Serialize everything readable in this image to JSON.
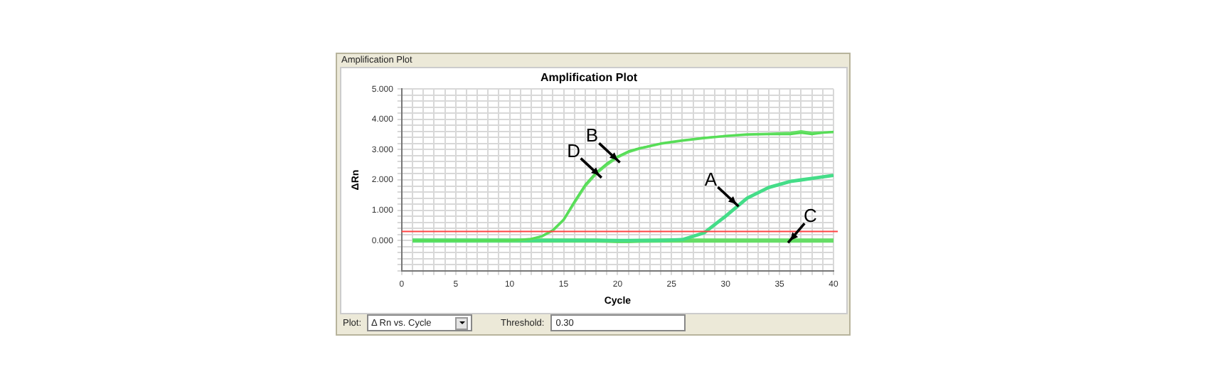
{
  "chart_data": {
    "type": "line",
    "title": "Amplification Plot",
    "xlabel": "Cycle",
    "ylabel": "ΔRn",
    "x": [
      1,
      2,
      4,
      6,
      8,
      10,
      11,
      12,
      13,
      14,
      15,
      16,
      17,
      18,
      19,
      20,
      21,
      22,
      24,
      26,
      28,
      30,
      32,
      34,
      36,
      37,
      38,
      40
    ],
    "series": [
      {
        "color": "#55dd55",
        "values": [
          0,
          0,
          0,
          0,
          0,
          0,
          0.02,
          0.05,
          0.15,
          0.35,
          0.7,
          1.3,
          1.85,
          2.25,
          2.55,
          2.78,
          2.95,
          3.05,
          3.2,
          3.3,
          3.4,
          3.45,
          3.5,
          3.5,
          3.5,
          3.55,
          3.5,
          3.6
        ]
      },
      {
        "color": "#66e066",
        "values": [
          0,
          0,
          0,
          0,
          0,
          0,
          0.02,
          0.05,
          0.14,
          0.33,
          0.68,
          1.25,
          1.8,
          2.2,
          2.5,
          2.75,
          2.92,
          3.03,
          3.2,
          3.3,
          3.38,
          3.45,
          3.5,
          3.52,
          3.55,
          3.6,
          3.55,
          3.58
        ]
      },
      {
        "color": "#44dd88",
        "values": [
          0,
          0,
          0,
          0,
          0,
          0,
          0,
          0,
          0,
          0,
          0,
          0,
          0,
          0,
          0,
          0,
          0,
          0,
          0,
          0.03,
          0.25,
          0.8,
          1.4,
          1.75,
          1.95,
          2.0,
          2.05,
          2.15
        ]
      },
      {
        "color": "#66dd66",
        "values": [
          0,
          0,
          0,
          0,
          0,
          0,
          0,
          0,
          0,
          0,
          0,
          0,
          0,
          0,
          -0.01,
          -0.02,
          -0.02,
          -0.01,
          0,
          0,
          0,
          0,
          0,
          0,
          0,
          0,
          0,
          0
        ]
      }
    ],
    "xlim": [
      0,
      40
    ],
    "xticks": [
      0,
      {
        "value": 1,
        "label": null
      },
      {
        "value": 2,
        "label": null
      },
      {
        "value": 3,
        "label": null
      },
      {
        "value": 4,
        "label": null
      },
      5,
      {
        "value": 6,
        "label": null
      },
      {
        "value": 7,
        "label": null
      },
      {
        "value": 8,
        "label": null
      },
      {
        "value": 9,
        "label": null
      },
      10,
      {
        "value": 11,
        "label": null
      },
      {
        "value": 12,
        "label": null
      },
      {
        "value": 13,
        "label": null
      },
      {
        "value": 14,
        "label": null
      },
      15,
      {
        "value": 16,
        "label": null
      },
      {
        "value": 17,
        "label": null
      },
      {
        "value": 18,
        "label": null
      },
      {
        "value": 19,
        "label": null
      },
      20,
      {
        "value": 21,
        "label": null
      },
      {
        "value": 22,
        "label": null
      },
      {
        "value": 23,
        "label": null
      },
      {
        "value": 24,
        "label": null
      },
      25,
      {
        "value": 26,
        "label": null
      },
      {
        "value": 27,
        "label": null
      },
      {
        "value": 28,
        "label": null
      },
      {
        "value": 29,
        "label": null
      },
      30,
      {
        "value": 31,
        "label": null
      },
      {
        "value": 32,
        "label": null
      },
      {
        "value": 33,
        "label": null
      },
      {
        "value": 34,
        "label": null
      },
      35,
      {
        "value": 36,
        "label": null
      },
      {
        "value": 37,
        "label": null
      },
      {
        "value": 38,
        "label": null
      },
      {
        "value": 39,
        "label": null
      },
      40
    ],
    "ylim": [
      -1,
      5
    ],
    "yticks": [
      {
        "value": -1,
        "label": null
      },
      {
        "value": -0.8,
        "label": null
      },
      {
        "value": -0.6,
        "label": null
      },
      {
        "value": -0.4,
        "label": null
      },
      {
        "value": -0.2,
        "label": null
      },
      {
        "value": 0,
        "label": "0.000"
      },
      {
        "value": 0.2,
        "label": null
      },
      {
        "value": 0.4,
        "label": null
      },
      {
        "value": 0.6,
        "label": null
      },
      {
        "value": 0.8,
        "label": null
      },
      {
        "value": 1,
        "label": "1.000"
      },
      {
        "value": 1.2,
        "label": null
      },
      {
        "value": 1.4,
        "label": null
      },
      {
        "value": 1.6,
        "label": null
      },
      {
        "value": 1.8,
        "label": null
      },
      {
        "value": 2,
        "label": "2.000"
      },
      {
        "value": 2.2,
        "label": null
      },
      {
        "value": 2.4,
        "label": null
      },
      {
        "value": 2.6,
        "label": null
      },
      {
        "value": 2.8,
        "label": null
      },
      {
        "value": 3,
        "label": "3.000"
      },
      {
        "value": 3.2,
        "label": null
      },
      {
        "value": 3.4,
        "label": null
      },
      {
        "value": 3.6,
        "label": null
      },
      {
        "value": 3.8,
        "label": null
      },
      {
        "value": 4,
        "label": "4.000"
      },
      {
        "value": 4.2,
        "label": null
      },
      {
        "value": 4.4,
        "label": null
      },
      {
        "value": 4.6,
        "label": null
      },
      {
        "value": 4.8,
        "label": null
      },
      {
        "value": 5,
        "label": "5.000"
      }
    ],
    "ref_lines": [
      {
        "axis": "y",
        "value": 0.3,
        "color": "#ff4444"
      }
    ],
    "grid": true,
    "legend": false,
    "marker": "none",
    "line_style": "solid",
    "annotations": [
      "Amplification Plot",
      "Plot:",
      "Δ Rn vs. Cycle",
      "Threshold:",
      "0.30",
      {
        "text": "A",
        "x": 31,
        "y": 1.2
      },
      {
        "text": "B",
        "x": 20,
        "y": 2.65
      },
      {
        "text": "C",
        "x": 36,
        "y": 0
      },
      {
        "text": "D",
        "x": 18.3,
        "y": 2.15
      }
    ]
  }
}
